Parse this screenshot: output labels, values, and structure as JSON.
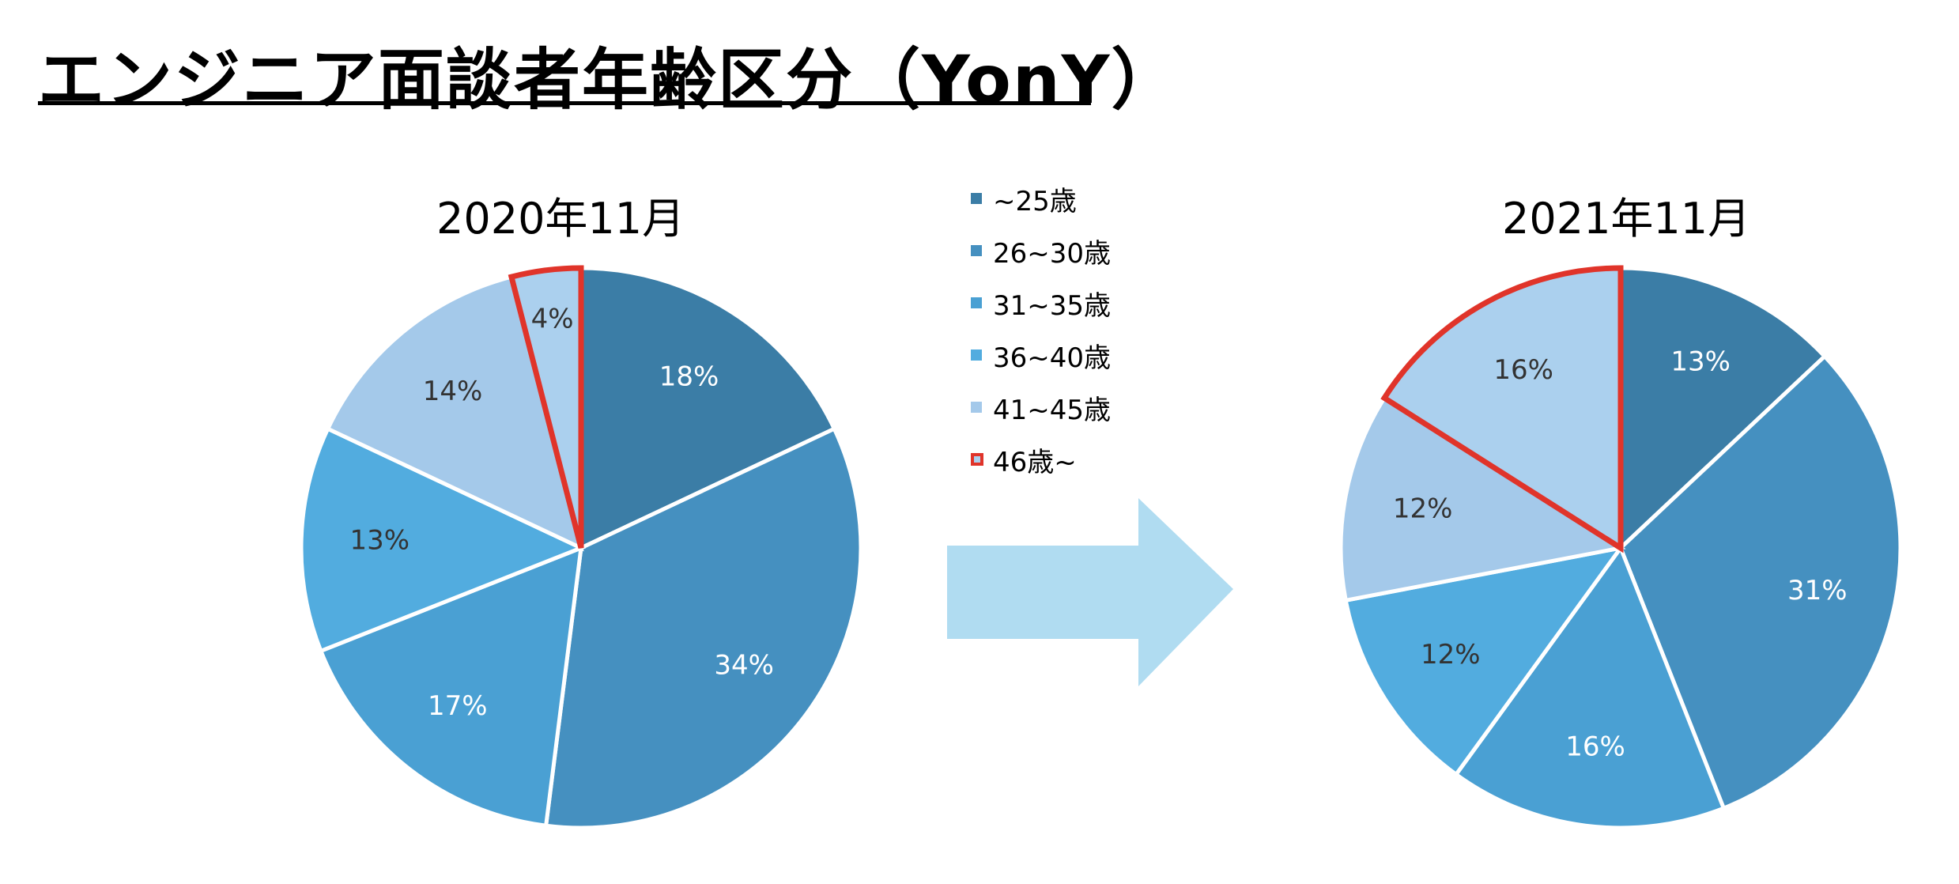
{
  "title": "エンジニア面談者年齢区分（YonY）",
  "colors": {
    "highlight": "#e0342a",
    "arrow": "#b0dcf1",
    "slice_outline": "#ffffff"
  },
  "legend": [
    {
      "label": "~25歳",
      "color": "#3b7da6"
    },
    {
      "label": "26~30歳",
      "color": "#4590c0"
    },
    {
      "label": "31~35歳",
      "color": "#4aa0d3"
    },
    {
      "label": "36~40歳",
      "color": "#52acdf"
    },
    {
      "label": "41~45歳",
      "color": "#a4c9ea"
    },
    {
      "label": "46歳~",
      "color": "#abd0ee",
      "highlighted": true
    }
  ],
  "chart_data": [
    {
      "type": "pie",
      "title": "2020年11月",
      "categories": [
        "~25歳",
        "26~30歳",
        "31~35歳",
        "36~40歳",
        "41~45歳",
        "46歳~"
      ],
      "values": [
        18,
        34,
        17,
        13,
        14,
        4
      ],
      "labels": [
        "18%",
        "34%",
        "17%",
        "13%",
        "14%",
        "4%"
      ],
      "highlighted_category": "46歳~"
    },
    {
      "type": "pie",
      "title": "2021年11月",
      "categories": [
        "~25歳",
        "26~30歳",
        "31~35歳",
        "36~40歳",
        "41~45歳",
        "46歳~"
      ],
      "values": [
        13,
        31,
        16,
        12,
        12,
        16
      ],
      "labels": [
        "13%",
        "31%",
        "16%",
        "12%",
        "12%",
        "16%"
      ],
      "highlighted_category": "46歳~"
    }
  ]
}
